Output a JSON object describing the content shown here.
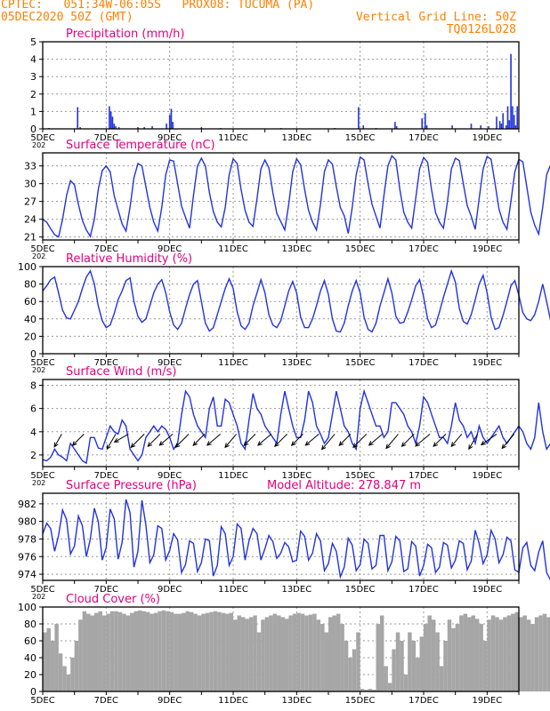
{
  "header": {
    "line1": "CPTEC:   051:34W-06:05S   PROX08: TUCUMA (PA)",
    "line2_left": "05DEC2020 50Z (GMT)",
    "line2_right": "Vertical Grid Line: 50Z",
    "line3_right": "TQ0126L028",
    "colors": {
      "header": "#ff8000",
      "title": "#e0007f",
      "series": "#2233dd",
      "cloud": "#a6a6a6",
      "arrow": "#000000"
    }
  },
  "x_axis": {
    "start_day": 5,
    "end_day": 20,
    "labels": [
      "5DEC",
      "7DEC",
      "9DEC",
      "11DEC",
      "13DEC",
      "15DEC",
      "17DEC",
      "19DEC"
    ],
    "label_days": [
      5,
      7,
      9,
      11,
      13,
      15,
      17,
      19
    ],
    "year_stub": "202"
  },
  "chart_data": [
    {
      "id": "precip",
      "type": "bar",
      "title": "Precipitation (mm/h)",
      "ylim": [
        0,
        5
      ],
      "yticks": [
        0,
        1,
        2,
        3,
        4,
        5
      ],
      "x_days": [
        5.2,
        6.1,
        6.18,
        7.1,
        7.15,
        7.2,
        7.25,
        7.3,
        7.4,
        8.0,
        8.2,
        8.45,
        8.9,
        9.0,
        9.05,
        9.1,
        10.0,
        10.6,
        12.5,
        14.2,
        14.95,
        15.1,
        15.5,
        16.1,
        16.15,
        16.95,
        17.05,
        17.1,
        17.9,
        18.5,
        18.8,
        19.05,
        19.3,
        19.4,
        19.45,
        19.5,
        19.6,
        19.65,
        19.7,
        19.75,
        19.8,
        19.85,
        19.9,
        19.95
      ],
      "values": [
        0.05,
        1.25,
        0.1,
        1.3,
        1.0,
        0.7,
        0.3,
        0.15,
        0.1,
        0.1,
        0.1,
        0.15,
        0.3,
        0.8,
        1.15,
        0.4,
        0.1,
        0.05,
        0.05,
        0.05,
        1.25,
        0.2,
        0.05,
        0.4,
        0.15,
        0.6,
        0.9,
        0.2,
        0.2,
        0.3,
        0.2,
        0.15,
        0.7,
        0.45,
        0.3,
        0.9,
        0.2,
        1.3,
        0.5,
        4.3,
        1.3,
        0.8,
        0.2,
        1.3
      ]
    },
    {
      "id": "temp",
      "type": "line",
      "title": "Surface Temperature (nC)",
      "ylim": [
        20.5,
        35.2
      ],
      "yticks": [
        21,
        24,
        27,
        30,
        33
      ],
      "start_day": 5,
      "step_days": 0.125,
      "values": [
        24,
        23.5,
        22.4,
        21.4,
        21.0,
        24,
        28,
        30.5,
        29.8,
        26.5,
        23.8,
        22.2,
        21.1,
        24,
        29,
        32.2,
        33.0,
        32.0,
        28,
        25.6,
        23.2,
        22.0,
        26,
        31,
        33.4,
        33.0,
        29.5,
        26.0,
        23.5,
        22.0,
        26,
        31.5,
        34.0,
        33.8,
        30,
        26.2,
        24.3,
        22.5,
        28,
        33,
        34.3,
        33.0,
        28.5,
        25.3,
        23.5,
        22.7,
        26,
        31.5,
        34.2,
        33.4,
        29,
        25.5,
        23.5,
        22.8,
        27.5,
        32.5,
        34.0,
        32.7,
        28.5,
        25.0,
        23.6,
        22.2,
        26.5,
        32,
        34.2,
        33.2,
        29,
        25.5,
        23.5,
        22.2,
        26.5,
        32,
        34.0,
        33.3,
        29.5,
        26.0,
        24.6,
        21.6,
        26,
        31.5,
        34.5,
        34.0,
        30,
        26.5,
        24.5,
        22.5,
        28,
        33,
        34.7,
        34.0,
        29,
        25.2,
        23.5,
        22.5,
        27.5,
        32.5,
        34.4,
        33.6,
        29,
        25.1,
        23.5,
        22.5,
        27,
        32.5,
        34.3,
        33.9,
        30,
        26.3,
        24.5,
        22.3,
        27.5,
        32.5,
        34.6,
        34.1,
        30,
        25.7,
        23.5,
        22.3,
        27,
        32,
        34.1,
        33.7,
        29.5,
        25.2,
        23.0,
        21.5,
        26,
        31.5,
        33.2,
        33.7,
        31
      ]
    },
    {
      "id": "rh",
      "type": "line",
      "title": "Relative Humidity (%)",
      "ylim": [
        0,
        100
      ],
      "yticks": [
        0,
        20,
        40,
        60,
        80,
        100
      ],
      "start_day": 5,
      "step_days": 0.125,
      "values": [
        72,
        78,
        85,
        88,
        70,
        50,
        41,
        40,
        50,
        60,
        75,
        88,
        95,
        80,
        55,
        38,
        30,
        33,
        46,
        62,
        72,
        84,
        87,
        60,
        43,
        36,
        40,
        55,
        70,
        80,
        85,
        70,
        48,
        33,
        28,
        35,
        52,
        68,
        80,
        84,
        60,
        35,
        26,
        30,
        45,
        60,
        75,
        86,
        75,
        48,
        32,
        28,
        35,
        55,
        70,
        85,
        70,
        45,
        33,
        30,
        38,
        55,
        72,
        83,
        70,
        42,
        30,
        30,
        40,
        55,
        72,
        84,
        68,
        40,
        26,
        25,
        35,
        55,
        72,
        84,
        70,
        42,
        28,
        25,
        35,
        55,
        70,
        86,
        70,
        43,
        35,
        36,
        48,
        62,
        78,
        85,
        65,
        40,
        30,
        33,
        48,
        65,
        80,
        95,
        82,
        52,
        37,
        34,
        45,
        62,
        80,
        90,
        70,
        42,
        28,
        30,
        44,
        60,
        78,
        84,
        67,
        47,
        40,
        38,
        45,
        60,
        80,
        60,
        38,
        35,
        45
      ]
    },
    {
      "id": "wind",
      "type": "line",
      "title": "Surface Wind (m/s)",
      "ylim": [
        1,
        8.5
      ],
      "yticks": [
        2,
        4,
        6,
        8
      ],
      "start_day": 5,
      "step_days": 0.125,
      "values": [
        1.6,
        1.5,
        1.8,
        2.5,
        2.0,
        1.8,
        1.5,
        3.0,
        2.5,
        2.0,
        1.5,
        1.3,
        3.5,
        3.5,
        2.6,
        2.5,
        3.5,
        4.5,
        4.0,
        3.8,
        5.0,
        4.5,
        2.5,
        2.0,
        1.5,
        2.0,
        3.5,
        4.0,
        4.5,
        4.0,
        4.5,
        4.2,
        3.5,
        2.5,
        3.0,
        5.5,
        7.5,
        7.0,
        5.5,
        4.5,
        4.0,
        3.5,
        6.0,
        7.0,
        4.5,
        4.5,
        6.8,
        6.5,
        5.5,
        4.5,
        3.0,
        2.5,
        5.0,
        7.3,
        6.0,
        5.5,
        4.5,
        4.0,
        3.5,
        3.0,
        5.5,
        7.5,
        6.0,
        4.5,
        3.5,
        3.5,
        5.0,
        7.5,
        6.5,
        4.5,
        3.8,
        3.0,
        3.5,
        5.5,
        7.5,
        6.0,
        4.5,
        4.0,
        3.0,
        2.5,
        6.0,
        7.5,
        6.5,
        5.5,
        4.5,
        4.5,
        3.5,
        4.0,
        6.5,
        6.5,
        6.0,
        5.5,
        4.5,
        4.0,
        3.0,
        4.5,
        7.0,
        6.5,
        5.5,
        4.5,
        3.5,
        3.5,
        3.0,
        4.5,
        6.5,
        5.0,
        4.5,
        3.5,
        4.0,
        3.0,
        4.5,
        3.5,
        3.0,
        3.5,
        4.0,
        4.5,
        3.5,
        3.0,
        3.5,
        4.0,
        4.5,
        4.0,
        3.0,
        2.5,
        3.5,
        6.5,
        4.0,
        2.5,
        3.0,
        3.0,
        2.8
      ],
      "barb_days": [
        5.6,
        6.3,
        7.3,
        7.7,
        8.2,
        8.7,
        9.1,
        9.6,
        10.1,
        10.6,
        11.1,
        11.7,
        12.2,
        12.7,
        13.2,
        13.7,
        14.2,
        14.7,
        15.2,
        15.7,
        16.2,
        16.7,
        17.2,
        17.7,
        18.2,
        18.7,
        19.3,
        19.85
      ],
      "barb_speeds": [
        2.5,
        3.0,
        3.5,
        3.0,
        4.0,
        3.5,
        3.5,
        4.0,
        3.0,
        3.5,
        3.5,
        3.0,
        3.5,
        3.5,
        3.0,
        3.5,
        4.5,
        3.0,
        4.0,
        3.5,
        4.0,
        3.5,
        4.0,
        3.5,
        3.0,
        3.5,
        4.0,
        4.0
      ],
      "barb_dirs_deg": [
        60,
        45,
        60,
        30,
        45,
        45,
        40,
        45,
        45,
        40,
        50,
        45,
        40,
        45,
        45,
        40,
        50,
        45,
        45,
        40,
        50,
        45,
        40,
        45,
        50,
        60,
        35,
        50
      ]
    },
    {
      "id": "pres",
      "type": "line",
      "title": "Surface Pressure (hPa)",
      "extra_label": "Model Altitude: 278.847 m",
      "ylim": [
        973.3,
        983.2
      ],
      "yticks": [
        974,
        976,
        978,
        980,
        982
      ],
      "start_day": 5,
      "step_days": 0.125,
      "values": [
        978.6,
        979.8,
        979.2,
        976.6,
        978.4,
        981.3,
        980.2,
        976.3,
        977.2,
        980.6,
        979.5,
        976.0,
        978.0,
        981.5,
        980.0,
        975.6,
        977.0,
        981.4,
        980.3,
        975.7,
        977.6,
        982.5,
        981.0,
        974.8,
        976.6,
        982.4,
        979.6,
        975.3,
        976.2,
        979.5,
        979.2,
        975.6,
        976.7,
        978.6,
        977.9,
        974.2,
        975.1,
        977.8,
        977.5,
        974.3,
        975.3,
        978.0,
        977.8,
        973.8,
        975.0,
        979.4,
        978.6,
        975.0,
        976.0,
        979.7,
        979.2,
        975.6,
        977.8,
        979.2,
        978.6,
        975.6,
        976.9,
        978.4,
        977.7,
        975.8,
        976.4,
        977.6,
        977.1,
        975.4,
        975.6,
        978.9,
        978.3,
        975.6,
        976.4,
        978.6,
        977.8,
        974.4,
        975.2,
        977.5,
        976.6,
        973.7,
        974.8,
        978.1,
        977.3,
        974.4,
        975.1,
        978.0,
        977.5,
        974.6,
        975.0,
        978.4,
        978.4,
        974.4,
        975.4,
        978.3,
        977.8,
        974.3,
        974.6,
        977.7,
        977.2,
        973.8,
        975.0,
        977.4,
        977.0,
        974.2,
        974.8,
        977.6,
        977.3,
        974.7,
        975.6,
        977.8,
        977.5,
        974.5,
        975.5,
        979.0,
        977.5,
        975.2,
        976.2,
        979.0,
        978.0,
        975.3,
        976.2,
        978.2,
        977.8,
        974.5,
        974.2,
        977.0,
        977.6,
        975.0,
        974.4,
        976.5,
        977.8,
        974.2,
        973.3
      ]
    },
    {
      "id": "cloud",
      "type": "bar",
      "title": "Cloud Cover (%)",
      "ylim": [
        0,
        100
      ],
      "yticks": [
        0,
        20,
        40,
        60,
        80,
        100
      ],
      "start_day": 5,
      "step_days": 0.125,
      "values": [
        70,
        75,
        60,
        80,
        45,
        30,
        20,
        40,
        60,
        85,
        95,
        92,
        90,
        93,
        95,
        90,
        92,
        95,
        95,
        94,
        92,
        90,
        93,
        95,
        96,
        95,
        94,
        92,
        93,
        95,
        96,
        95,
        94,
        92,
        92,
        93,
        95,
        94,
        92,
        90,
        92,
        93,
        94,
        95,
        94,
        93,
        92,
        93,
        85,
        90,
        88,
        86,
        88,
        90,
        70,
        85,
        88,
        90,
        92,
        90,
        88,
        86,
        90,
        92,
        93,
        92,
        90,
        91,
        92,
        85,
        80,
        70,
        88,
        90,
        92,
        80,
        60,
        40,
        50,
        70,
        3,
        2,
        3,
        2,
        80,
        90,
        30,
        10,
        50,
        70,
        60,
        20,
        70,
        60,
        40,
        65,
        80,
        90,
        85,
        70,
        30,
        60,
        85,
        75,
        80,
        90,
        92,
        88,
        90,
        86,
        80,
        60,
        85,
        90,
        88,
        85,
        88,
        90,
        92,
        94,
        88,
        90,
        85,
        80,
        88,
        90,
        92,
        88,
        94,
        88,
        90
      ]
    }
  ]
}
